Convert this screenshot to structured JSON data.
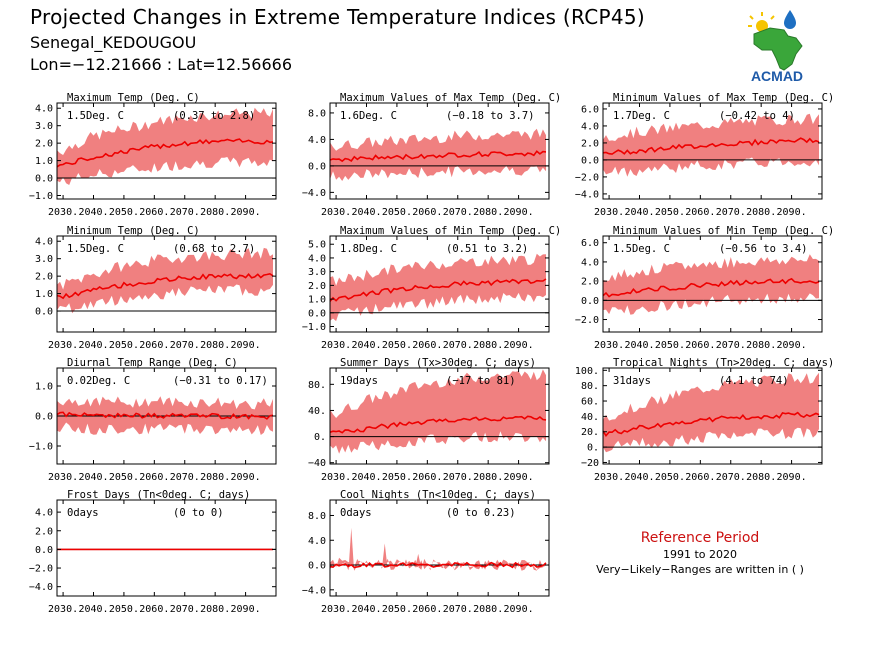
{
  "header": {
    "title": "Projected Changes in Extreme Temperature Indices (RCP45)",
    "station": "Senegal_KEDOUGOU",
    "coords": "Lon=−12.21666 : Lat=12.56666"
  },
  "logo": {
    "text": "ACMAD",
    "icon": "africa-map-logo"
  },
  "reference": {
    "title": "Reference Period",
    "years": "1991 to 2020",
    "note": "Very−Likely−Ranges are written in ( )"
  },
  "colors": {
    "band": "#f08080",
    "line": "#ee0000",
    "zero": "#000000"
  },
  "chart_data": [
    {
      "type": "area",
      "title": "Maximum Temp (Deg. C)",
      "change": "1.5Deg. C",
      "range": "(0.37 to 2.8)",
      "ylim": [
        -1.2,
        4.3
      ],
      "yticks": [
        -1.0,
        0.0,
        1.0,
        2.0,
        3.0,
        4.0
      ],
      "yticklabels": [
        "−1.0",
        "0.0",
        "1.0",
        "2.0",
        "3.0",
        "4.0"
      ],
      "x": [
        2030,
        2040,
        2050,
        2060,
        2070,
        2080,
        2090
      ],
      "xticklabels": [
        "2030.",
        "2040.",
        "2050.",
        "2060.",
        "2070.",
        "2080.",
        "2090."
      ],
      "median": [
        0.75,
        1.2,
        1.5,
        1.8,
        2.0,
        2.1,
        2.1
      ],
      "lower": [
        -0.2,
        0.2,
        0.4,
        0.6,
        0.8,
        0.9,
        0.9
      ],
      "upper": [
        1.6,
        2.4,
        2.8,
        3.2,
        3.5,
        3.6,
        3.7
      ]
    },
    {
      "type": "area",
      "title": "Maximum Values of Max Temp (Deg. C)",
      "change": "1.6Deg. C",
      "range": "(−0.18 to 3.7)",
      "ylim": [
        -5.0,
        9.5
      ],
      "yticks": [
        -4.0,
        0.0,
        4.0,
        8.0
      ],
      "yticklabels": [
        "−4.0",
        "0.0",
        "4.0",
        "8.0"
      ],
      "x": [
        2030,
        2040,
        2050,
        2060,
        2070,
        2080,
        2090
      ],
      "xticklabels": [
        "2030.",
        "2040.",
        "2050.",
        "2060.",
        "2070.",
        "2080.",
        "2090."
      ],
      "median": [
        1.0,
        1.2,
        1.3,
        1.5,
        1.7,
        1.8,
        1.9
      ],
      "lower": [
        -1.5,
        -1.3,
        -1.2,
        -1.0,
        -0.8,
        -0.7,
        -0.6
      ],
      "upper": [
        3.0,
        3.5,
        3.8,
        4.2,
        4.5,
        4.7,
        4.8
      ]
    },
    {
      "type": "area",
      "title": "Minimum Values of Max Temp (Deg. C)",
      "change": "1.7Deg. C",
      "range": "(−0.42 to 4)",
      "ylim": [
        -4.6,
        6.7
      ],
      "yticks": [
        -4.0,
        -2.0,
        0.0,
        2.0,
        4.0,
        6.0
      ],
      "yticklabels": [
        "−4.0",
        "−2.0",
        "0.0",
        "2.0",
        "4.0",
        "6.0"
      ],
      "x": [
        2030,
        2040,
        2050,
        2060,
        2070,
        2080,
        2090
      ],
      "xticklabels": [
        "2030.",
        "2040.",
        "2050.",
        "2060.",
        "2070.",
        "2080.",
        "2090."
      ],
      "median": [
        0.8,
        1.1,
        1.4,
        1.7,
        1.9,
        2.1,
        2.3
      ],
      "lower": [
        -1.5,
        -1.2,
        -0.9,
        -0.7,
        -0.5,
        -0.3,
        -0.2
      ],
      "upper": [
        2.8,
        3.3,
        3.7,
        4.1,
        4.4,
        4.6,
        4.8
      ]
    },
    {
      "type": "area",
      "title": "Minimum Temp (Deg. C)",
      "change": "1.5Deg. C",
      "range": "(0.68 to 2.7)",
      "ylim": [
        -1.2,
        4.3
      ],
      "yticks": [
        0.0,
        1.0,
        2.0,
        3.0,
        4.0
      ],
      "yticklabels": [
        "0.0",
        "1.0",
        "2.0",
        "3.0",
        "4.0"
      ],
      "x": [
        2030,
        2040,
        2050,
        2060,
        2070,
        2080,
        2090
      ],
      "xticklabels": [
        "2030.",
        "2040.",
        "2050.",
        "2060.",
        "2070.",
        "2080.",
        "2090."
      ],
      "median": [
        0.8,
        1.2,
        1.5,
        1.7,
        1.9,
        2.0,
        2.0
      ],
      "lower": [
        0.1,
        0.4,
        0.7,
        0.9,
        1.1,
        1.2,
        1.2
      ],
      "upper": [
        1.5,
        2.1,
        2.6,
        2.9,
        3.1,
        3.2,
        3.3
      ]
    },
    {
      "type": "area",
      "title": "Maximum Values of Min Temp (Deg. C)",
      "change": "1.8Deg. C",
      "range": "(0.51 to 3.2)",
      "ylim": [
        -1.4,
        5.6
      ],
      "yticks": [
        -1.0,
        0.0,
        1.0,
        2.0,
        3.0,
        4.0,
        5.0
      ],
      "yticklabels": [
        "−1.0",
        "0.0",
        "1.0",
        "2.0",
        "3.0",
        "4.0",
        "5.0"
      ],
      "x": [
        2030,
        2040,
        2050,
        2060,
        2070,
        2080,
        2090
      ],
      "xticklabels": [
        "2030.",
        "2040.",
        "2050.",
        "2060.",
        "2070.",
        "2080.",
        "2090."
      ],
      "median": [
        1.0,
        1.4,
        1.7,
        1.9,
        2.1,
        2.2,
        2.3
      ],
      "lower": [
        -0.2,
        0.2,
        0.5,
        0.7,
        0.9,
        1.0,
        1.1
      ],
      "upper": [
        2.3,
        2.8,
        3.2,
        3.5,
        3.7,
        3.8,
        3.9
      ]
    },
    {
      "type": "area",
      "title": "Minimum Values of Min Temp (Deg. C)",
      "change": "1.5Deg. C",
      "range": "(−0.56 to 3.4)",
      "ylim": [
        -3.3,
        6.7
      ],
      "yticks": [
        -2.0,
        0.0,
        2.0,
        4.0,
        6.0
      ],
      "yticklabels": [
        "−2.0",
        "0.0",
        "2.0",
        "4.0",
        "6.0"
      ],
      "x": [
        2030,
        2040,
        2050,
        2060,
        2070,
        2080,
        2090
      ],
      "xticklabels": [
        "2030.",
        "2040.",
        "2050.",
        "2060.",
        "2070.",
        "2080.",
        "2090."
      ],
      "median": [
        0.6,
        1.0,
        1.3,
        1.6,
        1.8,
        1.9,
        2.0
      ],
      "lower": [
        -1.2,
        -0.8,
        -0.5,
        -0.2,
        0.0,
        0.1,
        0.2
      ],
      "upper": [
        2.5,
        3.0,
        3.4,
        3.7,
        4.0,
        4.1,
        4.2
      ]
    },
    {
      "type": "area",
      "title": "Diurnal Temp Range (Deg. C)",
      "change": "0.02Deg. C",
      "range": "(−0.31 to 0.17)",
      "ylim": [
        -1.6,
        1.6
      ],
      "yticks": [
        -1.0,
        0.0,
        1.0
      ],
      "yticklabels": [
        "−1.0",
        "0.0",
        "1.0"
      ],
      "x": [
        2030,
        2040,
        2050,
        2060,
        2070,
        2080,
        2090
      ],
      "xticklabels": [
        "2030.",
        "2040.",
        "2050.",
        "2060.",
        "2070.",
        "2080.",
        "2090."
      ],
      "median": [
        0.05,
        0.02,
        0.03,
        0.0,
        0.02,
        0.0,
        -0.02
      ],
      "lower": [
        -0.4,
        -0.45,
        -0.4,
        -0.45,
        -0.4,
        -0.45,
        -0.45
      ],
      "upper": [
        0.5,
        0.5,
        0.45,
        0.5,
        0.45,
        0.45,
        0.4
      ]
    },
    {
      "type": "area",
      "title": "Summer Days (Tx>30deg. C; days)",
      "change": "19days",
      "range": "(−17 to 81)",
      "ylim": [
        -42,
        105
      ],
      "yticks": [
        -40,
        0,
        40,
        80
      ],
      "yticklabels": [
        "−40",
        "0.",
        "40.",
        "80."
      ],
      "x": [
        2030,
        2040,
        2050,
        2060,
        2070,
        2080,
        2090
      ],
      "xticklabels": [
        "2030.",
        "2040.",
        "2050.",
        "2060.",
        "2070.",
        "2080.",
        "2090."
      ],
      "median": [
        5,
        12,
        18,
        22,
        26,
        27,
        28
      ],
      "lower": [
        -20,
        -15,
        -10,
        -5,
        -2,
        0,
        0
      ],
      "upper": [
        35,
        55,
        70,
        80,
        88,
        92,
        95
      ]
    },
    {
      "type": "area",
      "title": "Tropical Nights (Tn>20deg. C; days)",
      "change": "31days",
      "range": "(4.1 to 74)",
      "ylim": [
        -22,
        103
      ],
      "yticks": [
        -20,
        0,
        20,
        40,
        60,
        80,
        100
      ],
      "yticklabels": [
        "−20",
        "0.",
        "20.",
        "40.",
        "60.",
        "80.",
        "100."
      ],
      "x": [
        2030,
        2040,
        2050,
        2060,
        2070,
        2080,
        2090
      ],
      "xticklabels": [
        "2030.",
        "2040.",
        "2050.",
        "2060.",
        "2070.",
        "2080.",
        "2090."
      ],
      "median": [
        18,
        25,
        30,
        35,
        38,
        40,
        42
      ],
      "lower": [
        0,
        5,
        8,
        12,
        15,
        17,
        18
      ],
      "upper": [
        40,
        55,
        65,
        75,
        82,
        86,
        90
      ]
    },
    {
      "type": "area",
      "title": "Frost Days (Tn<0deg. C; days)",
      "change": "0days",
      "range": "(0 to 0)",
      "ylim": [
        -5.0,
        5.3
      ],
      "yticks": [
        -4.0,
        -2.0,
        0.0,
        2.0,
        4.0
      ],
      "yticklabels": [
        "−4.0",
        "−2.0",
        "0.0",
        "2.0",
        "4.0"
      ],
      "x": [
        2030,
        2040,
        2050,
        2060,
        2070,
        2080,
        2090
      ],
      "xticklabels": [
        "2030.",
        "2040.",
        "2050.",
        "2060.",
        "2070.",
        "2080.",
        "2090."
      ],
      "median": [
        0,
        0,
        0,
        0,
        0,
        0,
        0
      ],
      "lower": [
        0,
        0,
        0,
        0,
        0,
        0,
        0
      ],
      "upper": [
        0,
        0,
        0,
        0,
        0,
        0,
        0
      ]
    },
    {
      "type": "area",
      "title": "Cool Nights (Tn<10deg. C; days)",
      "change": "0days",
      "range": "(0 to 0.23)",
      "ylim": [
        -5.0,
        10.5
      ],
      "yticks": [
        -4.0,
        0.0,
        4.0,
        8.0
      ],
      "yticklabels": [
        "−4.0",
        "0.0",
        "4.0",
        "8.0"
      ],
      "x": [
        2030,
        2040,
        2050,
        2060,
        2070,
        2080,
        2090
      ],
      "xticklabels": [
        "2030.",
        "2040.",
        "2050.",
        "2060.",
        "2070.",
        "2080.",
        "2090."
      ],
      "median": [
        0,
        0,
        0,
        0,
        0,
        0,
        0
      ],
      "lower": [
        0,
        0,
        0,
        0,
        0,
        0,
        0
      ],
      "upper": [
        0.3,
        0.2,
        0.1,
        0.05,
        0,
        0,
        0
      ],
      "spikes": [
        {
          "x": 2035,
          "value": 6.0
        },
        {
          "x": 2037,
          "value": 1.0
        },
        {
          "x": 2046,
          "value": 3.5
        },
        {
          "x": 2057,
          "value": 1.8
        },
        {
          "x": 2072,
          "value": 0.5
        }
      ]
    }
  ]
}
